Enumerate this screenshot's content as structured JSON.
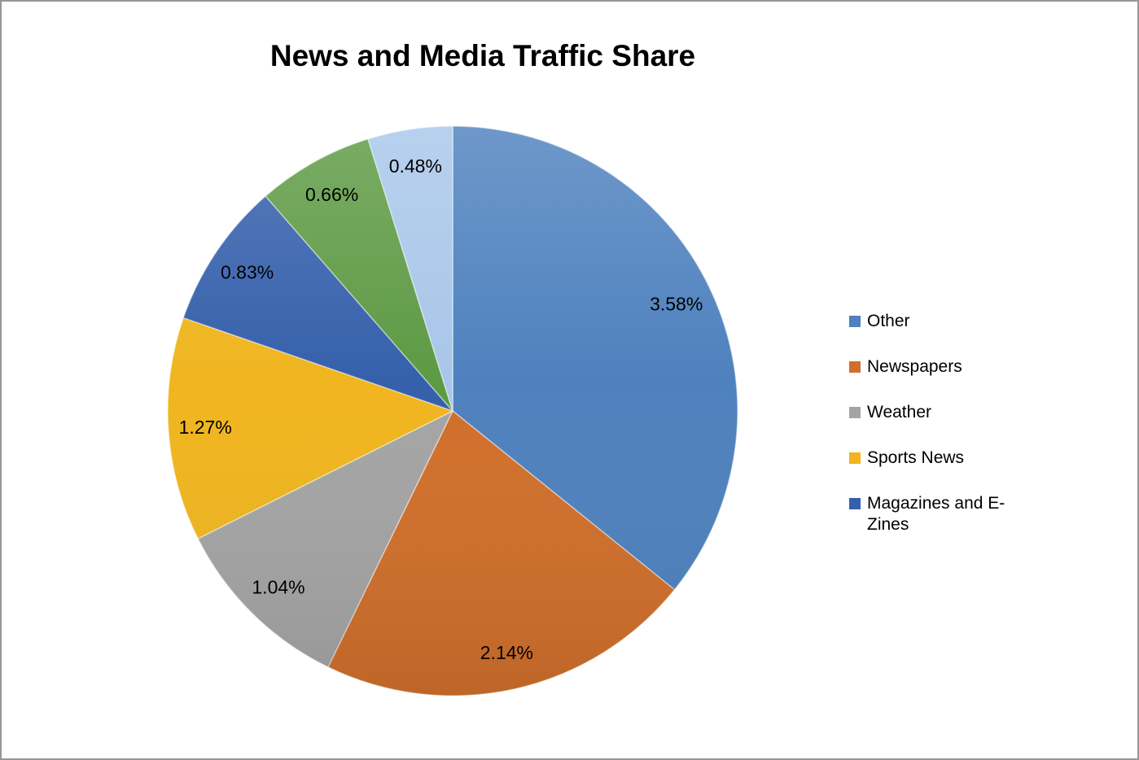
{
  "chart_data": {
    "type": "pie",
    "title": "News and Media Traffic Share",
    "unit": "%",
    "start_angle_deg": 0,
    "direction": "clockwise",
    "legend_position": "right",
    "slices": [
      {
        "label": "Other",
        "value": 3.58,
        "display": "3.58%",
        "color": "#4E81BE",
        "in_legend": true
      },
      {
        "label": "Newspapers",
        "value": 2.14,
        "display": "2.14%",
        "color": "#D06F2B",
        "in_legend": true
      },
      {
        "label": "Weather",
        "value": 1.04,
        "display": "1.04%",
        "color": "#A4A4A4",
        "in_legend": true
      },
      {
        "label": "Sports News",
        "value": 1.27,
        "display": "1.27%",
        "color": "#F0B51F",
        "in_legend": true
      },
      {
        "label": "Magazines and E-Zines",
        "value": 0.83,
        "display": "0.83%",
        "color": "#3560AB",
        "in_legend": true
      },
      {
        "label": "",
        "value": 0.66,
        "display": "0.66%",
        "color": "#5D9A44",
        "in_legend": false
      },
      {
        "label": "",
        "value": 0.48,
        "display": "0.48%",
        "color": "#A8C6E9",
        "in_legend": false
      }
    ]
  }
}
